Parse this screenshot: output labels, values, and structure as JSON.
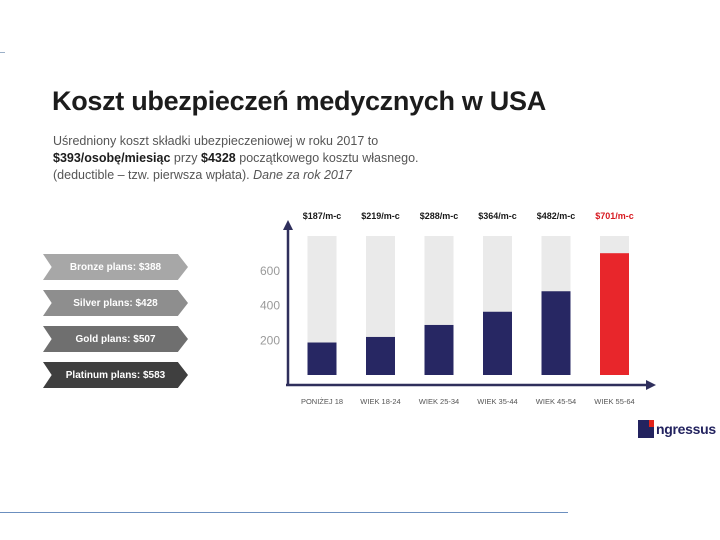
{
  "slide": {
    "title": "Koszt ubezpieczeń medycznych w USA",
    "subtitle": {
      "line1": "Uśredniony koszt składki ubezpieczeniowej w roku 2017 to",
      "line2_bold1": "$393/osobę/miesiąc",
      "line2_mid": " przy ",
      "line2_bold2": "$4328",
      "line2_end": " początkowego kosztu własnego.",
      "line3_start": "(deductible – tzw. pierwsza wpłata). ",
      "line3_italic": "Dane za rok 2017"
    },
    "plans": [
      {
        "label": "Bronze plans: $388"
      },
      {
        "label": "Silver plans: $428"
      },
      {
        "label": "Gold plans: $507"
      },
      {
        "label": "Platinum plans: $583"
      }
    ],
    "logo": {
      "text": "ngressus"
    }
  },
  "chart_data": {
    "type": "bar",
    "title": "",
    "xlabel": "",
    "ylabel": "",
    "categories": [
      "PONIŻEJ 18",
      "WIEK 18-24",
      "WIEK 25-34",
      "WIEK 35-44",
      "WIEK 45-54",
      "WIEK 55-64"
    ],
    "values": [
      187,
      219,
      288,
      364,
      482,
      701
    ],
    "value_labels": [
      "$187/m-c",
      "$219/m-c",
      "$288/m-c",
      "$364/m-c",
      "$482/m-c",
      "$701/m-c"
    ],
    "yticks": [
      200,
      400,
      600
    ],
    "ylim": [
      0,
      800
    ],
    "colors": {
      "bar": "#272763",
      "highlight": "#e8262b",
      "background_bar": "#eaeaea",
      "axis": "#2f2f5c",
      "highlight_label": "#d71920"
    },
    "highlight_index": 5,
    "grid": false
  }
}
